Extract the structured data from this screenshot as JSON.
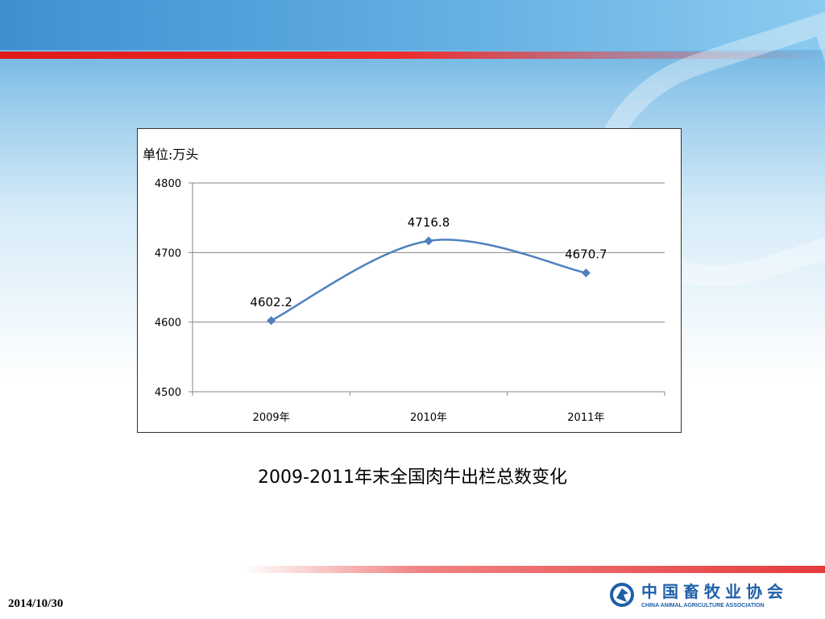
{
  "slide": {
    "caption": "2009-2011年末全国肉牛出栏总数变化",
    "date": "2014/10/30",
    "logo": {
      "name_cn": "中国畜牧业协会",
      "name_en": "CHINA ANIMAL AGRICULTURE ASSOCIATION"
    },
    "colors": {
      "accent_red": "#e01818",
      "brand_blue": "#1e5fa8",
      "series_line": "#4f81bd"
    }
  },
  "chart_data": {
    "type": "line",
    "unit_label": "单位:万头",
    "categories": [
      "2009年",
      "2010年",
      "2011年"
    ],
    "values": [
      4602.2,
      4716.8,
      4670.7
    ],
    "data_labels": [
      "4602.2",
      "4716.8",
      "4670.7"
    ],
    "ylim": [
      4500,
      4800
    ],
    "yticks": [
      4500,
      4600,
      4700,
      4800
    ],
    "grid": true,
    "legend": "none",
    "smooth": true
  }
}
